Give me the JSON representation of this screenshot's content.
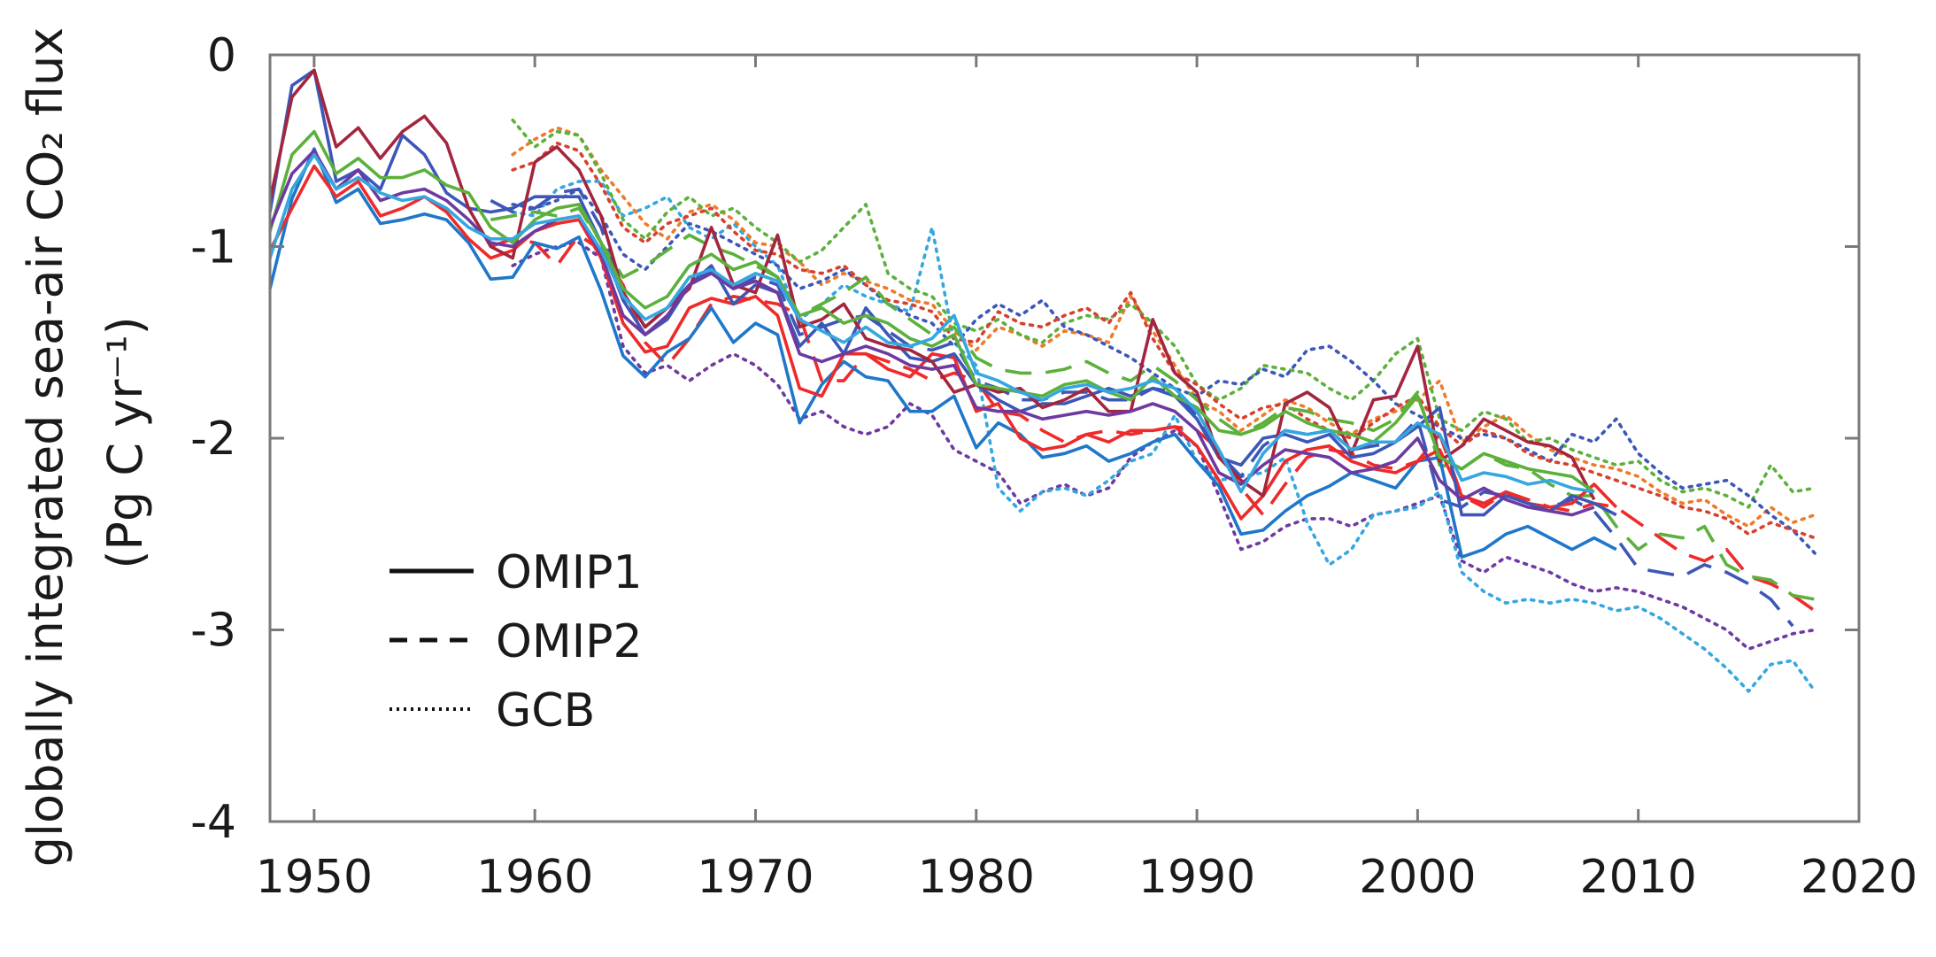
{
  "chart_data": {
    "type": "line",
    "title": "",
    "xlabel": "",
    "ylabel_line1": "globally integrated sea-air CO₂ flux",
    "ylabel_line2": "(Pg C yr⁻¹)",
    "xlim": [
      1948,
      2020
    ],
    "ylim": [
      -4,
      0
    ],
    "xticks": [
      1950,
      1960,
      1970,
      1980,
      1990,
      2000,
      2010,
      2020
    ],
    "xtick_labels": [
      "1950",
      "1960",
      "1970",
      "1980",
      "1990",
      "2000",
      "2010",
      "2020"
    ],
    "yticks": [
      0,
      -1,
      -2,
      -3,
      -4
    ],
    "ytick_labels": [
      "0",
      "-1",
      "-2",
      "-3",
      "-4"
    ],
    "grid": false,
    "legend_position": "lower-left",
    "legend": [
      {
        "label": "OMIP1",
        "style": "solid"
      },
      {
        "label": "OMIP2",
        "style": "dashed"
      },
      {
        "label": "GCB",
        "style": "dotted"
      }
    ],
    "series": [
      {
        "group": "OMIP1",
        "style": "solid",
        "color": "#1f77c9",
        "x_start": 1948,
        "values": [
          -1.22,
          -0.75,
          -0.49,
          -0.77,
          -0.7,
          -0.88,
          -0.86,
          -0.83,
          -0.86,
          -0.98,
          -1.17,
          -1.16,
          -0.98,
          -1.01,
          -0.95,
          -1.23,
          -1.57,
          -1.68,
          -1.55,
          -1.48,
          -1.32,
          -1.5,
          -1.4,
          -1.46,
          -1.92,
          -1.72,
          -1.6,
          -1.68,
          -1.7,
          -1.86,
          -1.86,
          -1.78,
          -2.05,
          -1.92,
          -1.98,
          -2.1,
          -2.08,
          -2.04,
          -2.12,
          -2.08,
          -2.02,
          -1.98,
          -2.12,
          -2.25,
          -2.5,
          -2.48,
          -2.38,
          -2.3,
          -2.25,
          -2.18,
          -2.22,
          -2.26,
          -2.12,
          -2.1,
          -2.62,
          -2.58,
          -2.5,
          -2.46,
          -2.52,
          -2.58,
          -2.52,
          -2.58
        ]
      },
      {
        "group": "OMIP1",
        "style": "solid",
        "color": "#ee2a2a",
        "x_start": 1948,
        "values": [
          -1.02,
          -0.8,
          -0.58,
          -0.74,
          -0.66,
          -0.84,
          -0.8,
          -0.74,
          -0.82,
          -0.96,
          -1.06,
          -1.02,
          -0.92,
          -0.88,
          -0.86,
          -1.06,
          -1.4,
          -1.55,
          -1.52,
          -1.32,
          -1.27,
          -1.3,
          -1.26,
          -1.36,
          -1.74,
          -1.78,
          -1.56,
          -1.56,
          -1.64,
          -1.68,
          -1.56,
          -1.58,
          -1.86,
          -1.82,
          -2.0,
          -2.06,
          -2.04,
          -1.98,
          -2.02,
          -1.96,
          -1.96,
          -1.94,
          -2.04,
          -2.22,
          -2.42,
          -2.3,
          -2.12,
          -2.06,
          -2.04,
          -2.12,
          -2.16,
          -2.18,
          -2.12,
          -2.06,
          -2.3,
          -2.34,
          -2.28,
          -2.34,
          -2.36,
          -2.34,
          -2.24,
          -2.36
        ]
      },
      {
        "group": "OMIP1",
        "style": "solid",
        "color": "#3c57b8",
        "x_start": 1948,
        "values": [
          -0.82,
          -0.16,
          -0.08,
          -0.66,
          -0.6,
          -0.7,
          -0.42,
          -0.52,
          -0.72,
          -0.8,
          -0.82,
          -0.8,
          -0.74,
          -0.74,
          -0.74,
          -0.98,
          -1.28,
          -1.46,
          -1.38,
          -1.2,
          -1.1,
          -1.3,
          -1.2,
          -1.24,
          -1.52,
          -1.4,
          -1.56,
          -1.32,
          -1.46,
          -1.58,
          -1.6,
          -1.56,
          -1.72,
          -1.8,
          -1.86,
          -1.82,
          -1.82,
          -1.78,
          -1.74,
          -1.78,
          -1.74,
          -1.78,
          -1.9,
          -2.1,
          -2.14,
          -2.0,
          -1.98,
          -2.02,
          -1.98,
          -2.1,
          -2.08,
          -2.02,
          -1.94,
          -1.84,
          -2.4,
          -2.4,
          -2.3,
          -2.34,
          -2.38,
          -2.3,
          -2.34,
          -2.4
        ]
      },
      {
        "group": "OMIP1",
        "style": "solid",
        "color": "#a3263e",
        "x_start": 1948,
        "values": [
          -0.76,
          -0.22,
          -0.08,
          -0.48,
          -0.38,
          -0.54,
          -0.4,
          -0.32,
          -0.46,
          -0.8,
          -1.0,
          -1.06,
          -0.56,
          -0.48,
          -0.6,
          -0.84,
          -1.24,
          -1.42,
          -1.32,
          -1.22,
          -0.9,
          -1.2,
          -1.24,
          -0.94,
          -1.42,
          -1.38,
          -1.3,
          -1.48,
          -1.52,
          -1.54,
          -1.6,
          -1.76,
          -1.72,
          -1.76,
          -1.74,
          -1.84,
          -1.8,
          -1.74,
          -1.86,
          -1.86,
          -1.38,
          -1.66,
          -1.76,
          -2.1,
          -2.22,
          -2.3,
          -1.82,
          -1.76,
          -1.84,
          -2.08,
          -1.8,
          -1.78,
          -1.52,
          -2.12,
          -2.04,
          -1.9,
          -1.96,
          -2.02,
          -2.04,
          -2.1,
          -2.32
        ]
      },
      {
        "group": "OMIP1",
        "style": "solid",
        "color": "#5cb03c",
        "x_start": 1948,
        "values": [
          -0.92,
          -0.52,
          -0.4,
          -0.62,
          -0.54,
          -0.64,
          -0.64,
          -0.6,
          -0.68,
          -0.72,
          -0.9,
          -0.98,
          -0.86,
          -0.8,
          -0.78,
          -0.98,
          -1.22,
          -1.32,
          -1.26,
          -1.1,
          -1.04,
          -1.12,
          -1.08,
          -1.16,
          -1.36,
          -1.32,
          -1.4,
          -1.36,
          -1.4,
          -1.48,
          -1.52,
          -1.46,
          -1.72,
          -1.74,
          -1.76,
          -1.78,
          -1.72,
          -1.7,
          -1.76,
          -1.8,
          -1.68,
          -1.78,
          -1.84,
          -1.96,
          -1.98,
          -1.94,
          -1.86,
          -1.92,
          -1.96,
          -1.98,
          -2.02,
          -1.92,
          -1.78,
          -2.1,
          -2.16,
          -2.08,
          -2.12,
          -2.16,
          -2.18,
          -2.2,
          -2.28
        ]
      },
      {
        "group": "OMIP1",
        "style": "solid",
        "color": "#6d3aa0",
        "x_start": 1948,
        "values": [
          -0.9,
          -0.62,
          -0.5,
          -0.7,
          -0.6,
          -0.76,
          -0.72,
          -0.7,
          -0.76,
          -0.86,
          -0.98,
          -1.0,
          -0.92,
          -0.86,
          -0.84,
          -1.04,
          -1.36,
          -1.46,
          -1.36,
          -1.2,
          -1.14,
          -1.22,
          -1.18,
          -1.24,
          -1.56,
          -1.6,
          -1.56,
          -1.52,
          -1.56,
          -1.62,
          -1.64,
          -1.62,
          -1.84,
          -1.86,
          -1.86,
          -1.9,
          -1.88,
          -1.86,
          -1.88,
          -1.86,
          -1.82,
          -1.86,
          -1.96,
          -2.18,
          -2.24,
          -2.14,
          -2.06,
          -2.08,
          -2.1,
          -2.18,
          -2.16,
          -2.12,
          -2.0,
          -2.22,
          -2.32,
          -2.26,
          -2.32,
          -2.36,
          -2.38,
          -2.4,
          -2.36
        ]
      },
      {
        "group": "OMIP1",
        "style": "solid",
        "color": "#35a7e0",
        "x_start": 1948,
        "values": [
          -1.06,
          -0.7,
          -0.52,
          -0.7,
          -0.64,
          -0.72,
          -0.76,
          -0.74,
          -0.8,
          -0.9,
          -0.96,
          -0.96,
          -0.88,
          -0.86,
          -0.84,
          -1.02,
          -1.26,
          -1.38,
          -1.32,
          -1.16,
          -1.12,
          -1.2,
          -1.14,
          -1.18,
          -1.38,
          -1.44,
          -1.5,
          -1.42,
          -1.5,
          -1.52,
          -1.48,
          -1.36,
          -1.66,
          -1.7,
          -1.76,
          -1.8,
          -1.74,
          -1.72,
          -1.76,
          -1.74,
          -1.7,
          -1.74,
          -1.86,
          -2.06,
          -2.28,
          -2.08,
          -1.96,
          -1.98,
          -1.96,
          -2.06,
          -2.02,
          -2.02,
          -1.92,
          -1.98,
          -2.22,
          -2.18,
          -2.2,
          -2.24,
          -2.22,
          -2.26,
          -2.28
        ]
      },
      {
        "group": "OMIP2",
        "style": "dashed",
        "color": "#ee2a2a",
        "x_start": 1958,
        "values": [
          -1.0,
          -0.96,
          -0.98,
          -1.1,
          -0.94,
          -1.02,
          -1.2,
          -1.5,
          -1.62,
          -1.48,
          -1.3,
          -1.26,
          -1.28,
          -1.3,
          -1.36,
          -1.7,
          -1.7,
          -1.56,
          -1.6,
          -1.64,
          -1.7,
          -1.66,
          -1.7,
          -1.86,
          -1.88,
          -1.96,
          -2.02,
          -1.98,
          -1.96,
          -1.98,
          -1.96,
          -1.94,
          -1.96,
          -2.06,
          -2.26,
          -2.4,
          -2.24,
          -2.1,
          -2.06,
          -2.08,
          -2.14,
          -2.16,
          -2.12,
          -1.98,
          -2.3,
          -2.36,
          -2.28,
          -2.32,
          -2.36,
          -2.38,
          -2.34,
          -2.36,
          -2.44,
          -2.52,
          -2.6,
          -2.64,
          -2.58,
          -2.72,
          -2.76,
          -2.82,
          -2.9
        ]
      },
      {
        "group": "OMIP2",
        "style": "dashed",
        "color": "#3c57b8",
        "x_start": 1958,
        "values": [
          -0.76,
          -0.82,
          -0.8,
          -0.72,
          -0.7,
          -0.9,
          -1.24,
          -1.42,
          -1.32,
          -1.2,
          -1.12,
          -1.22,
          -1.16,
          -1.2,
          -1.46,
          -1.42,
          -1.38,
          -1.36,
          -1.44,
          -1.52,
          -1.54,
          -1.5,
          -1.7,
          -1.74,
          -1.8,
          -1.8,
          -1.76,
          -1.76,
          -1.8,
          -1.8,
          -1.74,
          -1.76,
          -1.88,
          -2.08,
          -2.2,
          -2.04,
          -1.96,
          -1.98,
          -1.96,
          -2.06,
          -2.04,
          -2.02,
          -1.9,
          -2.32,
          -2.36,
          -2.28,
          -2.3,
          -2.34,
          -2.36,
          -2.32,
          -2.38,
          -2.52,
          -2.68,
          -2.7,
          -2.72,
          -2.66,
          -2.7,
          -2.76,
          -2.84,
          -2.98
        ]
      },
      {
        "group": "OMIP2",
        "style": "dashed",
        "color": "#5cb03c",
        "x_start": 1958,
        "values": [
          -0.86,
          -0.84,
          -0.82,
          -0.84,
          -0.8,
          -0.98,
          -1.16,
          -1.1,
          -1.02,
          -0.94,
          -1.0,
          -1.04,
          -1.1,
          -1.16,
          -1.36,
          -1.3,
          -1.24,
          -1.16,
          -1.3,
          -1.38,
          -1.46,
          -1.42,
          -1.58,
          -1.64,
          -1.66,
          -1.66,
          -1.64,
          -1.6,
          -1.66,
          -1.7,
          -1.62,
          -1.7,
          -1.8,
          -1.9,
          -1.98,
          -1.92,
          -1.84,
          -1.86,
          -1.9,
          -1.92,
          -1.96,
          -1.9,
          -1.76,
          -2.14,
          -2.16,
          -2.08,
          -2.14,
          -2.16,
          -2.24,
          -2.3,
          -2.3,
          -2.46,
          -2.58,
          -2.5,
          -2.52,
          -2.46,
          -2.66,
          -2.72,
          -2.74,
          -2.82,
          -2.84
        ]
      },
      {
        "group": "GCB",
        "style": "dotted",
        "color": "#6d3aa0",
        "x_start": 1959,
        "values": [
          -1.1,
          -1.04,
          -1.0,
          -0.98,
          -1.06,
          -1.52,
          -1.66,
          -1.62,
          -1.7,
          -1.62,
          -1.56,
          -1.62,
          -1.72,
          -1.9,
          -1.86,
          -1.94,
          -1.98,
          -1.94,
          -1.82,
          -1.88,
          -2.06,
          -2.12,
          -2.18,
          -2.34,
          -2.28,
          -2.24,
          -2.3,
          -2.26,
          -2.1,
          -2.02,
          -1.96,
          -2.04,
          -2.3,
          -2.58,
          -2.54,
          -2.46,
          -2.42,
          -2.42,
          -2.46,
          -2.4,
          -2.38,
          -2.34,
          -2.3,
          -2.64,
          -2.7,
          -2.62,
          -2.66,
          -2.7,
          -2.76,
          -2.8,
          -2.78,
          -2.8,
          -2.84,
          -2.88,
          -2.94,
          -3.0,
          -3.1,
          -3.06,
          -3.02,
          -3.0
        ]
      },
      {
        "group": "GCB",
        "style": "dotted",
        "color": "#35a7e0",
        "x_start": 1959,
        "values": [
          -0.82,
          -0.84,
          -0.7,
          -0.66,
          -0.66,
          -0.84,
          -0.8,
          -0.74,
          -0.9,
          -0.96,
          -0.88,
          -1.0,
          -1.1,
          -1.38,
          -1.3,
          -1.2,
          -1.26,
          -1.3,
          -1.34,
          -0.9,
          -1.5,
          -1.62,
          -2.26,
          -2.38,
          -2.28,
          -2.26,
          -2.3,
          -2.22,
          -2.12,
          -2.08,
          -1.88,
          -2.12,
          -2.22,
          -2.2,
          -2.18,
          -2.1,
          -2.44,
          -2.66,
          -2.58,
          -2.4,
          -2.38,
          -2.36,
          -2.28,
          -2.7,
          -2.8,
          -2.86,
          -2.84,
          -2.86,
          -2.84,
          -2.86,
          -2.9,
          -2.88,
          -2.94,
          -3.02,
          -3.1,
          -3.2,
          -3.32,
          -3.18,
          -3.16,
          -3.32
        ]
      },
      {
        "group": "GCB",
        "style": "dotted",
        "color": "#ee7a2a",
        "x_start": 1959,
        "values": [
          -0.52,
          -0.44,
          -0.38,
          -0.42,
          -0.6,
          -0.74,
          -0.88,
          -0.96,
          -0.82,
          -0.78,
          -0.86,
          -0.98,
          -1.0,
          -1.08,
          -1.2,
          -1.14,
          -1.18,
          -1.22,
          -1.28,
          -1.3,
          -1.44,
          -1.54,
          -1.42,
          -1.46,
          -1.52,
          -1.44,
          -1.46,
          -1.5,
          -1.26,
          -1.44,
          -1.62,
          -1.8,
          -1.86,
          -1.96,
          -1.88,
          -1.8,
          -1.84,
          -1.92,
          -1.98,
          -1.9,
          -1.86,
          -1.8,
          -1.7,
          -2.02,
          -1.94,
          -1.88,
          -1.98,
          -2.06,
          -2.1,
          -2.14,
          -2.16,
          -2.2,
          -2.28,
          -2.34,
          -2.32,
          -2.4,
          -2.46,
          -2.36,
          -2.44,
          -2.4
        ]
      },
      {
        "group": "GCB",
        "style": "dotted",
        "color": "#5cb03c",
        "x_start": 1959,
        "values": [
          -0.34,
          -0.48,
          -0.4,
          -0.42,
          -0.62,
          -0.86,
          -0.96,
          -0.82,
          -0.74,
          -0.84,
          -0.8,
          -0.9,
          -0.98,
          -1.08,
          -1.02,
          -0.9,
          -0.78,
          -1.14,
          -1.22,
          -1.26,
          -1.4,
          -1.44,
          -1.38,
          -1.46,
          -1.5,
          -1.4,
          -1.36,
          -1.38,
          -1.3,
          -1.4,
          -1.52,
          -1.72,
          -1.8,
          -1.74,
          -1.62,
          -1.64,
          -1.66,
          -1.74,
          -1.8,
          -1.7,
          -1.56,
          -1.48,
          -1.9,
          -1.96,
          -1.86,
          -1.9,
          -2.02,
          -2.0,
          -2.06,
          -2.1,
          -2.14,
          -2.12,
          -2.22,
          -2.28,
          -2.26,
          -2.3,
          -2.36,
          -2.14,
          -2.28,
          -2.26
        ]
      },
      {
        "group": "GCB",
        "style": "dotted",
        "color": "#3c57b8",
        "x_start": 1959,
        "values": [
          -0.78,
          -0.8,
          -0.76,
          -0.7,
          -0.84,
          -1.04,
          -1.12,
          -1.0,
          -0.88,
          -0.92,
          -0.98,
          -1.04,
          -1.1,
          -1.22,
          -1.18,
          -1.12,
          -1.2,
          -1.3,
          -1.36,
          -1.4,
          -1.52,
          -1.38,
          -1.3,
          -1.36,
          -1.28,
          -1.42,
          -1.46,
          -1.52,
          -1.58,
          -1.66,
          -1.74,
          -1.78,
          -1.7,
          -1.72,
          -1.64,
          -1.68,
          -1.54,
          -1.52,
          -1.6,
          -1.7,
          -1.82,
          -1.88,
          -1.94,
          -2.0,
          -1.98,
          -2.0,
          -2.06,
          -2.12,
          -1.98,
          -2.02,
          -1.9,
          -2.08,
          -2.18,
          -2.26,
          -2.24,
          -2.22,
          -2.3,
          -2.4,
          -2.48,
          -2.6
        ]
      },
      {
        "group": "GCB",
        "style": "dotted",
        "color": "#d8402e",
        "x_start": 1959,
        "values": [
          -0.6,
          -0.56,
          -0.46,
          -0.5,
          -0.68,
          -0.9,
          -0.98,
          -0.88,
          -0.84,
          -0.8,
          -0.92,
          -1.02,
          -1.04,
          -1.12,
          -1.14,
          -1.1,
          -1.2,
          -1.28,
          -1.3,
          -1.34,
          -1.48,
          -1.5,
          -1.34,
          -1.4,
          -1.42,
          -1.36,
          -1.32,
          -1.4,
          -1.24,
          -1.48,
          -1.66,
          -1.72,
          -1.82,
          -1.9,
          -1.84,
          -1.82,
          -1.9,
          -1.96,
          -2.0,
          -1.92,
          -1.84,
          -1.78,
          -1.94,
          -2.04,
          -1.96,
          -2.0,
          -2.08,
          -2.12,
          -2.14,
          -2.18,
          -2.22,
          -2.26,
          -2.3,
          -2.36,
          -2.38,
          -2.42,
          -2.5,
          -2.44,
          -2.48,
          -2.52
        ]
      }
    ]
  }
}
